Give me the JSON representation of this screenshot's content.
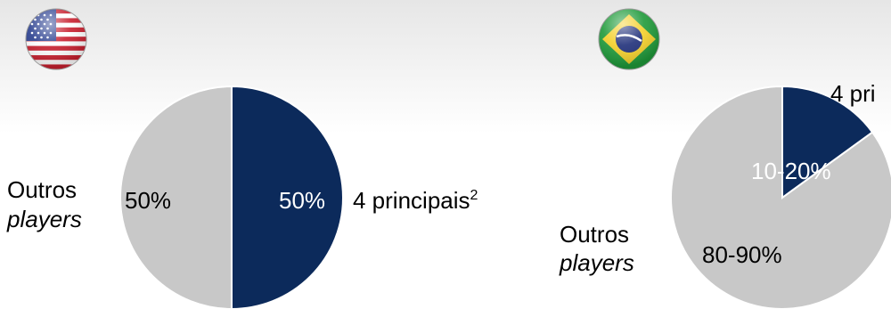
{
  "colors": {
    "major": "#0c2a5b",
    "others": "#c8c8c8"
  },
  "flags": {
    "left": "us-flag-icon",
    "right": "brazil-flag-icon"
  },
  "chart_data": [
    {
      "type": "pie",
      "country": "United States",
      "slices": [
        {
          "label": "4 principais",
          "superscript": "2",
          "value": 50,
          "value_text": "50%"
        },
        {
          "label_line1": "Outros",
          "label_line2": "players",
          "value": 50,
          "value_text": "50%"
        }
      ]
    },
    {
      "type": "pie",
      "country": "Brazil",
      "slices": [
        {
          "label": "4 pri",
          "value": 15,
          "value_text": "10-20%"
        },
        {
          "label_line1": "Outros",
          "label_line2": "players",
          "value": 85,
          "value_text": "80-90%"
        }
      ]
    }
  ]
}
